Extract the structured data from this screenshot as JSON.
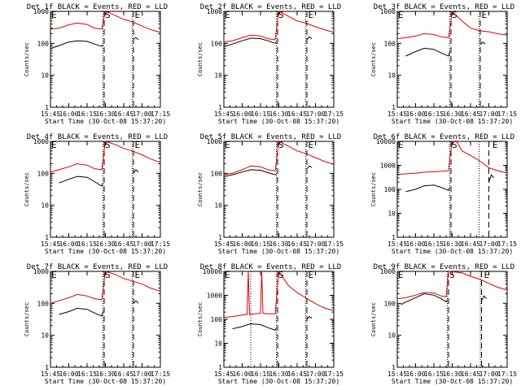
{
  "window": {
    "title": ""
  },
  "chart_data": [
    {
      "type": "line",
      "title": "Det 1f BLACK = Events, RED = LLD",
      "xlabel": "Start Time (30-Oct-08 15:37:20)",
      "ylabel": "Counts/sec",
      "x_ticks": [
        "15:45",
        "16:00",
        "16:15",
        "16:30",
        "16:45",
        "17:00",
        "17:15"
      ],
      "y_ticks": [
        "1",
        "10",
        "100",
        "1000"
      ],
      "ylim": [
        1,
        1000
      ],
      "xlim": [
        "15:45",
        "17:15"
      ],
      "y_scale": "log",
      "markers": {
        "S": "16:29",
        "E": "16:52"
      },
      "dotted_lines": [
        "16:28",
        "16:52"
      ],
      "dashed_lines": [
        "16:29",
        "16:53"
      ],
      "series": [
        {
          "color": "#000000",
          "x": [
            "15:46",
            "15:52",
            "16:00",
            "16:07",
            "16:15",
            "16:21",
            "16:27",
            "16:28"
          ],
          "values": [
            70,
            85,
            110,
            120,
            115,
            95,
            80,
            90
          ]
        },
        {
          "color": "#dd0000",
          "x": [
            "15:45",
            "15:52",
            "16:00",
            "16:07",
            "16:15",
            "16:21",
            "16:27",
            "16:30",
            "16:38",
            "16:45",
            "16:52",
            "17:00",
            "17:07",
            "17:15"
          ],
          "values": [
            280,
            300,
            380,
            430,
            390,
            300,
            280,
            1000,
            750,
            560,
            470,
            350,
            270,
            220
          ]
        },
        {
          "color": "#000000",
          "x": [
            "16:53",
            "16:55",
            "16:57"
          ],
          "values": [
            140,
            150,
            130
          ]
        }
      ]
    },
    {
      "type": "line",
      "title": "Det 2f BLACK = Events, RED = LLD",
      "xlabel": "Start Time (30-Oct-08 15:37:20)",
      "ylabel": "Counts/sec",
      "x_ticks": [
        "15:45",
        "16:00",
        "16:15",
        "16:30",
        "16:45",
        "17:00",
        "17:15"
      ],
      "y_ticks": [
        "1",
        "10",
        "100",
        "1000"
      ],
      "ylim": [
        1,
        1000
      ],
      "xlim": [
        "15:45",
        "17:15"
      ],
      "y_scale": "log",
      "markers": {
        "S": "16:29",
        "E": "16:52"
      },
      "dotted_lines": [
        "16:28",
        "16:52"
      ],
      "dashed_lines": [
        "16:29",
        "16:53"
      ],
      "series": [
        {
          "color": "#000000",
          "x": [
            "15:46",
            "15:52",
            "16:00",
            "16:07",
            "16:15",
            "16:21",
            "16:27",
            "16:28"
          ],
          "values": [
            80,
            95,
            120,
            145,
            140,
            120,
            100,
            110
          ]
        },
        {
          "color": "#dd0000",
          "x": [
            "15:45",
            "15:52",
            "16:00",
            "16:07",
            "16:15",
            "16:21",
            "16:27",
            "16:30",
            "16:38",
            "16:45",
            "16:52",
            "17:00",
            "17:07",
            "17:15"
          ],
          "values": [
            110,
            120,
            150,
            180,
            170,
            140,
            130,
            1000,
            700,
            500,
            430,
            330,
            270,
            220
          ]
        },
        {
          "color": "#000000",
          "x": [
            "16:53",
            "16:55",
            "16:57"
          ],
          "values": [
            130,
            160,
            140
          ]
        }
      ]
    },
    {
      "type": "line",
      "title": "Det 3f BLACK = Events, RED = LLD",
      "xlabel": "Start Time (30-Oct-08 15:37:20)",
      "ylabel": "Counts/sec",
      "x_ticks": [
        "15:45",
        "16:00",
        "16:15",
        "16:30",
        "16:45",
        "17:00",
        "17:15"
      ],
      "y_ticks": [
        "1",
        "10",
        "100",
        "1000"
      ],
      "ylim": [
        1,
        1000
      ],
      "xlim": [
        "15:45",
        "17:15"
      ],
      "y_scale": "log",
      "markers": {
        "S": "16:29",
        "E": "16:52"
      },
      "dotted_lines": [
        "16:28",
        "16:52"
      ],
      "dashed_lines": [
        "16:29",
        "16:53"
      ],
      "series": [
        {
          "color": "#000000",
          "x": [
            "15:52",
            "16:00",
            "16:07",
            "16:15",
            "16:21",
            "16:27",
            "16:28"
          ],
          "values": [
            40,
            55,
            70,
            65,
            50,
            40,
            55
          ]
        },
        {
          "color": "#dd0000",
          "x": [
            "15:45",
            "15:52",
            "16:00",
            "16:07",
            "16:15",
            "16:21",
            "16:27",
            "16:30",
            "16:38",
            "16:45",
            "16:52",
            "17:00",
            "17:07",
            "17:15"
          ],
          "values": [
            140,
            150,
            170,
            200,
            190,
            160,
            150,
            1000,
            500,
            300,
            250,
            230,
            200,
            180
          ]
        },
        {
          "color": "#000000",
          "x": [
            "16:53",
            "16:55",
            "16:57"
          ],
          "values": [
            90,
            110,
            95
          ]
        }
      ]
    },
    {
      "type": "line",
      "title": "Det 4f BLACK = Events, RED = LLD",
      "xlabel": "Start Time (30-Oct-08 15:37:20)",
      "ylabel": "Counts/sec",
      "x_ticks": [
        "15:45",
        "16:00",
        "16:15",
        "16:30",
        "16:45",
        "17:00",
        "17:15"
      ],
      "y_ticks": [
        "1",
        "10",
        "100",
        "1000"
      ],
      "ylim": [
        1,
        1000
      ],
      "xlim": [
        "15:45",
        "17:15"
      ],
      "y_scale": "log",
      "markers": {
        "S": "16:29",
        "E": "16:52"
      },
      "dotted_lines": [
        "16:28",
        "16:52"
      ],
      "dashed_lines": [
        "16:29",
        "16:53"
      ],
      "series": [
        {
          "color": "#000000",
          "x": [
            "15:52",
            "16:00",
            "16:07",
            "16:15",
            "16:21",
            "16:27",
            "16:28"
          ],
          "values": [
            50,
            65,
            80,
            75,
            55,
            40,
            50
          ]
        },
        {
          "color": "#dd0000",
          "x": [
            "15:45",
            "15:52",
            "16:00",
            "16:07",
            "16:15",
            "16:21",
            "16:27",
            "16:30",
            "16:38",
            "16:45",
            "16:52",
            "17:00",
            "17:07",
            "17:15"
          ],
          "values": [
            110,
            130,
            160,
            200,
            180,
            140,
            130,
            1000,
            800,
            600,
            500,
            380,
            280,
            220
          ]
        },
        {
          "color": "#000000",
          "x": [
            "16:53",
            "16:55",
            "16:57"
          ],
          "values": [
            100,
            130,
            110
          ]
        }
      ]
    },
    {
      "type": "line",
      "title": "Det 5f BLACK = Events, RED = LLD",
      "xlabel": "Start Time (30-Oct-08 15:37:20)",
      "ylabel": "Counts/sec",
      "x_ticks": [
        "15:45",
        "16:00",
        "16:15",
        "16:30",
        "16:45",
        "17:00",
        "17:15"
      ],
      "y_ticks": [
        "1",
        "10",
        "100",
        "1000"
      ],
      "ylim": [
        1,
        1000
      ],
      "xlim": [
        "15:45",
        "17:15"
      ],
      "y_scale": "log",
      "markers": {
        "S": "16:29",
        "E": "16:52"
      },
      "dotted_lines": [
        "16:28",
        "16:52"
      ],
      "dashed_lines": [
        "16:29",
        "16:53"
      ],
      "series": [
        {
          "color": "#000000",
          "x": [
            "15:46",
            "15:52",
            "16:00",
            "16:07",
            "16:15",
            "16:21",
            "16:27",
            "16:28"
          ],
          "values": [
            80,
            90,
            110,
            130,
            125,
            105,
            90,
            95
          ]
        },
        {
          "color": "#dd0000",
          "x": [
            "15:45",
            "15:52",
            "16:00",
            "16:07",
            "16:15",
            "16:21",
            "16:27",
            "16:30",
            "16:38",
            "16:45",
            "16:52",
            "17:00",
            "17:07",
            "17:15"
          ],
          "values": [
            90,
            100,
            130,
            170,
            160,
            130,
            120,
            1000,
            700,
            500,
            420,
            310,
            240,
            190
          ]
        },
        {
          "color": "#000000",
          "x": [
            "16:53",
            "16:55",
            "16:57"
          ],
          "values": [
            140,
            170,
            150
          ]
        }
      ]
    },
    {
      "type": "line",
      "title": "Det 6f BLACK = Events, RED = LLD",
      "xlabel": "Start Time (30-Oct-08 15:37:20)",
      "ylabel": "Counts/sec",
      "x_ticks": [
        "15:45",
        "16:00",
        "16:15",
        "16:30",
        "16:45",
        "17:00",
        "17:15"
      ],
      "y_ticks": [
        "1",
        "10",
        "100",
        "1000",
        "10000"
      ],
      "ylim": [
        1,
        10000
      ],
      "xlim": [
        "15:45",
        "17:15"
      ],
      "y_scale": "log",
      "markers": {
        "S": "16:29",
        "E": "17:01"
      },
      "dotted_lines": [
        "16:28",
        "16:52"
      ],
      "dashed_lines": [
        "16:29",
        "17:00"
      ],
      "series": [
        {
          "color": "#000000",
          "x": [
            "15:52",
            "16:00",
            "16:07",
            "16:15",
            "16:21",
            "16:27",
            "16:28"
          ],
          "values": [
            80,
            100,
            140,
            150,
            120,
            90,
            120
          ]
        },
        {
          "color": "#dd0000",
          "x": [
            "15:45",
            "15:52",
            "16:00",
            "16:07",
            "16:15",
            "16:21",
            "16:27",
            "16:28",
            "16:30",
            "16:34",
            "16:38",
            "16:45",
            "16:52",
            "17:00",
            "17:07",
            "17:15"
          ],
          "values": [
            420,
            440,
            470,
            520,
            540,
            560,
            600,
            2000,
            10000,
            9500,
            4000,
            2600,
            1600,
            800,
            600,
            480
          ]
        },
        {
          "color": "#000000",
          "x": [
            "17:00",
            "17:02",
            "17:04"
          ],
          "values": [
            200,
            400,
            300
          ]
        }
      ]
    },
    {
      "type": "line",
      "title": "Det 7f BLACK = Events, RED = LLD",
      "xlabel": "Start Time (30-Oct-08 15:37:20)",
      "ylabel": "Counts/sec",
      "x_ticks": [
        "15:45",
        "16:00",
        "16:15",
        "16:30",
        "16:45",
        "17:00",
        "17:15"
      ],
      "y_ticks": [
        "1",
        "10",
        "100",
        "1000"
      ],
      "ylim": [
        1,
        1000
      ],
      "xlim": [
        "15:45",
        "17:15"
      ],
      "y_scale": "log",
      "markers": {
        "S": "16:29",
        "E": "16:52"
      },
      "dotted_lines": [
        "16:28",
        "16:52"
      ],
      "dashed_lines": [
        "16:29",
        "16:53"
      ],
      "series": [
        {
          "color": "#000000",
          "x": [
            "15:52",
            "16:00",
            "16:07",
            "16:15",
            "16:21",
            "16:27",
            "16:28"
          ],
          "values": [
            45,
            55,
            70,
            65,
            50,
            40,
            55
          ]
        },
        {
          "color": "#dd0000",
          "x": [
            "15:45",
            "15:52",
            "16:00",
            "16:07",
            "16:15",
            "16:21",
            "16:27",
            "16:30",
            "16:38",
            "16:45",
            "16:52",
            "17:00",
            "17:07",
            "17:15"
          ],
          "values": [
            100,
            120,
            150,
            190,
            170,
            140,
            130,
            1000,
            800,
            600,
            500,
            400,
            300,
            240
          ]
        },
        {
          "color": "#000000",
          "x": [
            "16:53",
            "16:55",
            "16:57"
          ],
          "values": [
            100,
            120,
            100
          ]
        }
      ]
    },
    {
      "type": "line",
      "title": "Det 8f BLACK = Events, RED = LLD",
      "xlabel": "Start Time (30-Oct-08 15:37:20)",
      "ylabel": "Counts/sec",
      "x_ticks": [
        "15:45",
        "16:00",
        "16:15",
        "16:30",
        "16:45",
        "17:00",
        "17:15"
      ],
      "y_ticks": [
        "1",
        "10",
        "100",
        "1000",
        "10000"
      ],
      "ylim": [
        1,
        10000
      ],
      "xlim": [
        "15:45",
        "17:15"
      ],
      "y_scale": "log",
      "markers": {
        "S": "16:29",
        "E": "16:52"
      },
      "dotted_lines": [
        "16:07",
        "16:28",
        "16:52"
      ],
      "dashed_lines": [
        "16:29",
        "16:53"
      ],
      "series": [
        {
          "color": "#000000",
          "x": [
            "15:52",
            "16:00",
            "16:07",
            "16:15",
            "16:21",
            "16:27",
            "16:28"
          ],
          "values": [
            40,
            50,
            65,
            60,
            45,
            35,
            45
          ]
        },
        {
          "color": "#dd0000",
          "x": [
            "15:45",
            "15:52",
            "16:00",
            "16:04",
            "16:05",
            "16:06",
            "16:15",
            "16:16",
            "16:17",
            "16:21",
            "16:27",
            "16:30",
            "16:38",
            "16:45",
            "16:52",
            "17:00",
            "17:07",
            "17:15"
          ],
          "values": [
            120,
            130,
            150,
            160,
            10000,
            160,
            180,
            10000,
            180,
            170,
            170,
            10000,
            2500,
            1300,
            800,
            450,
            300,
            230
          ]
        },
        {
          "color": "#000000",
          "x": [
            "16:53",
            "16:55",
            "16:57"
          ],
          "values": [
            100,
            130,
            110
          ]
        }
      ]
    },
    {
      "type": "line",
      "title": "Det 9f BLACK = Events, RED = LLD",
      "xlabel": "Start Time (30-Oct-08 15:37:20)",
      "ylabel": "Counts/sec",
      "x_ticks": [
        "15:45",
        "16:00",
        "16:15",
        "16:30",
        "16:45",
        "17:00",
        "17:15"
      ],
      "y_ticks": [
        "1",
        "10",
        "100",
        "1000"
      ],
      "ylim": [
        1,
        1000
      ],
      "xlim": [
        "15:45",
        "17:15"
      ],
      "y_scale": "log",
      "markers": {
        "S": "16:27",
        "E": "16:54"
      },
      "dotted_lines": [
        "16:26",
        "16:53"
      ],
      "dashed_lines": [
        "16:27",
        "16:54"
      ],
      "series": [
        {
          "color": "#000000",
          "x": [
            "15:48",
            "15:52",
            "16:00",
            "16:07",
            "16:15",
            "16:21",
            "16:25",
            "16:26"
          ],
          "values": [
            90,
            110,
            150,
            200,
            180,
            140,
            110,
            130
          ]
        },
        {
          "color": "#dd0000",
          "x": [
            "15:45",
            "15:52",
            "16:00",
            "16:07",
            "16:15",
            "16:21",
            "16:25",
            "16:27",
            "16:38",
            "16:45",
            "16:53",
            "17:00",
            "17:07",
            "17:15"
          ],
          "values": [
            140,
            150,
            180,
            220,
            210,
            170,
            160,
            1000,
            900,
            700,
            560,
            420,
            320,
            260
          ]
        },
        {
          "color": "#000000",
          "x": [
            "16:54",
            "16:56",
            "16:58"
          ],
          "values": [
            120,
            170,
            140
          ]
        }
      ]
    }
  ]
}
